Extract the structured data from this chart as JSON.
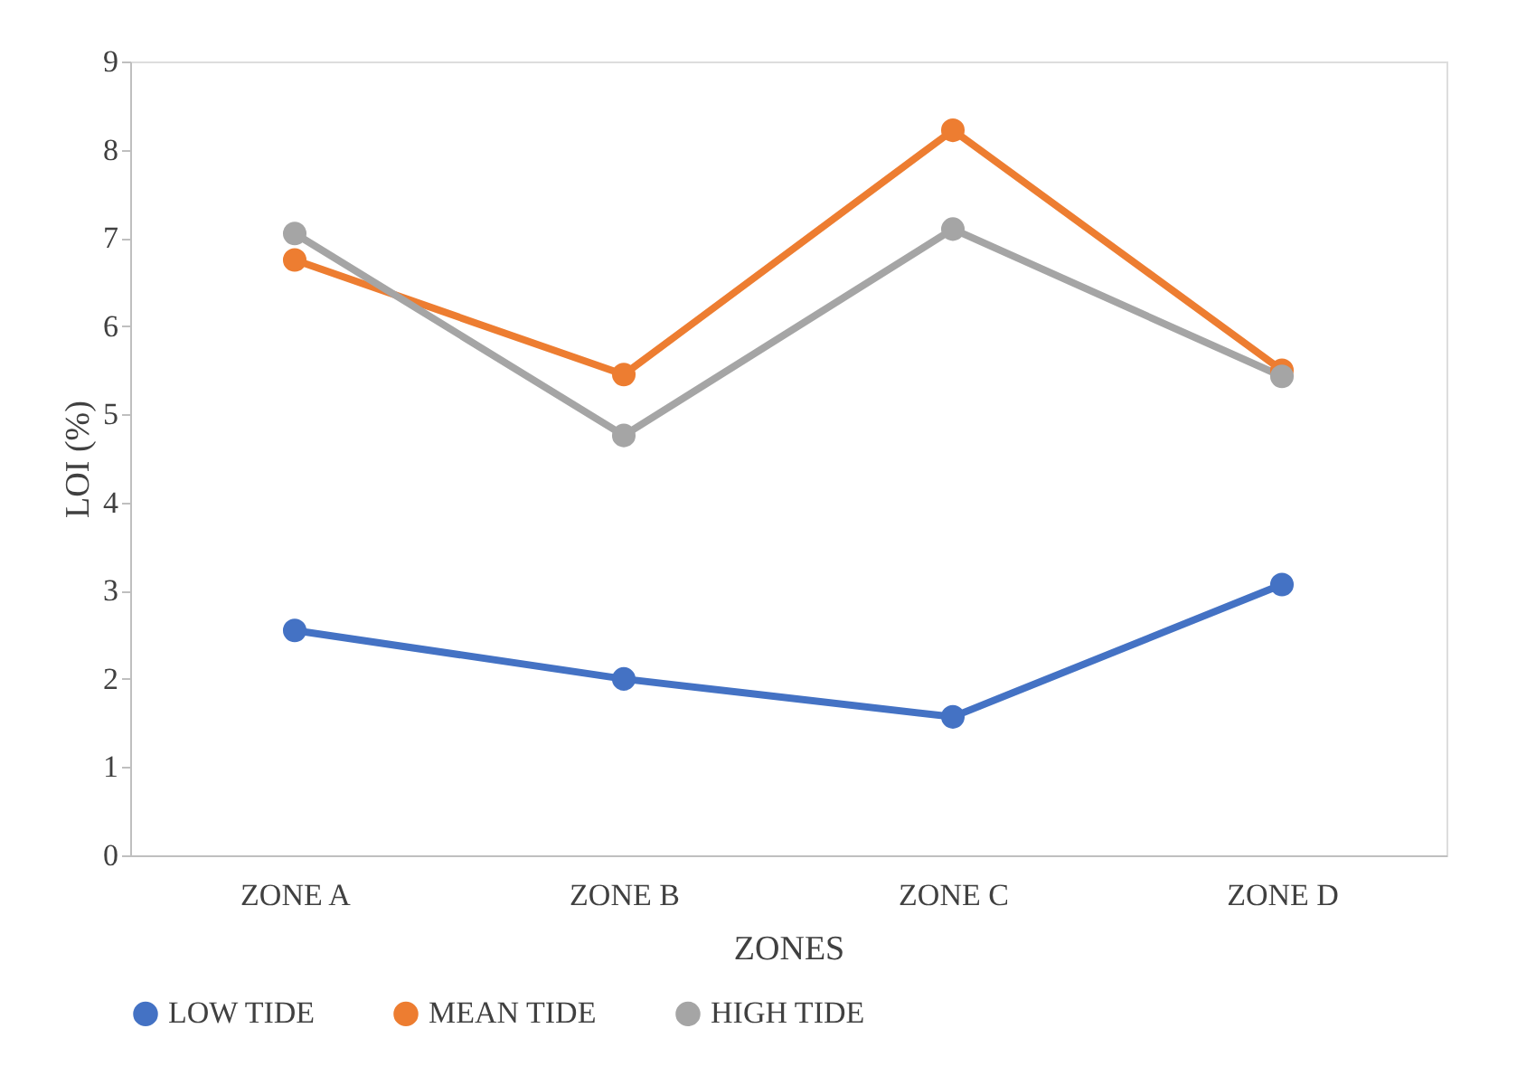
{
  "chart_data": {
    "type": "line",
    "xlabel": "ZONES",
    "ylabel": "LOI (%)",
    "categories": [
      "ZONE A",
      "ZONE B",
      "ZONE C",
      "ZONE D"
    ],
    "series": [
      {
        "name": "LOW TIDE",
        "color": "#4472c4",
        "values": [
          2.55,
          2.0,
          1.57,
          3.07
        ]
      },
      {
        "name": "MEAN TIDE",
        "color": "#ed7d31",
        "values": [
          6.75,
          5.45,
          8.22,
          5.5
        ]
      },
      {
        "name": "HIGH TIDE",
        "color": "#a5a5a5",
        "values": [
          7.05,
          4.76,
          7.1,
          5.43
        ]
      }
    ],
    "ylim": [
      0,
      9
    ],
    "yticks": [
      0,
      1,
      2,
      3,
      4,
      5,
      6,
      7,
      8,
      9
    ],
    "grid": false,
    "legend": "bottom",
    "marker": "circle",
    "line_style": "solid"
  }
}
